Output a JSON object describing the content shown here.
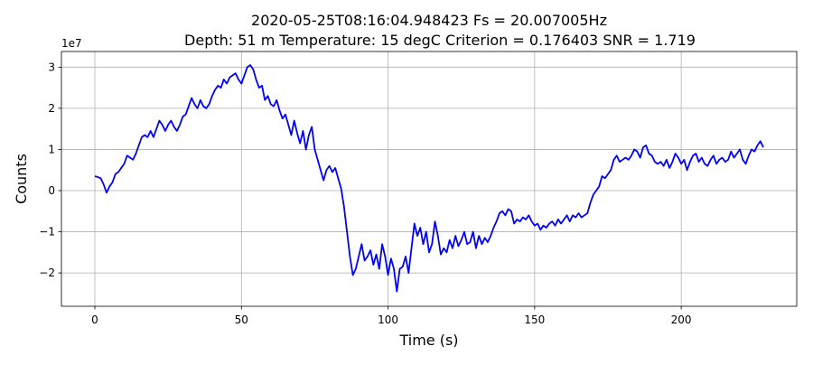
{
  "chart_data": {
    "type": "line",
    "title": "2020-05-25T08:16:04.948423     Fs = 20.007005Hz",
    "subtitle": "Depth: 51 m     Temperature: 15 degC     Criterion = 0.176403     SNR = 1.719",
    "x_label": "Time (s)",
    "y_label": "Counts",
    "y_offset_label": "1e7",
    "color": "#0000ff",
    "grid": true,
    "xlim": [
      -11.4,
      239.4
    ],
    "ylim": [
      -28100000,
      33800000
    ],
    "xticks": [
      0,
      50,
      100,
      150,
      200
    ],
    "yticks": [
      {
        "value": -20000000,
        "label": "−2"
      },
      {
        "value": -10000000,
        "label": "−1"
      },
      {
        "value": 0,
        "label": "0"
      },
      {
        "value": 10000000,
        "label": "1"
      },
      {
        "value": 20000000,
        "label": "2"
      },
      {
        "value": 30000000,
        "label": "3"
      }
    ],
    "x": [
      0,
      1,
      2,
      3,
      4,
      5,
      6,
      7,
      8,
      9,
      10,
      11,
      12,
      13,
      14,
      15,
      16,
      17,
      18,
      19,
      20,
      21,
      22,
      23,
      24,
      25,
      26,
      27,
      28,
      29,
      30,
      31,
      32,
      33,
      34,
      35,
      36,
      37,
      38,
      39,
      40,
      41,
      42,
      43,
      44,
      45,
      46,
      47,
      48,
      49,
      50,
      51,
      52,
      53,
      54,
      55,
      56,
      57,
      58,
      59,
      60,
      61,
      62,
      63,
      64,
      65,
      66,
      67,
      68,
      69,
      70,
      71,
      72,
      73,
      74,
      75,
      76,
      77,
      78,
      79,
      80,
      81,
      82,
      83,
      84,
      85,
      86,
      87,
      88,
      89,
      90,
      91,
      92,
      93,
      94,
      95,
      96,
      97,
      98,
      99,
      100,
      101,
      102,
      103,
      104,
      105,
      106,
      107,
      108,
      109,
      110,
      111,
      112,
      113,
      114,
      115,
      116,
      117,
      118,
      119,
      120,
      121,
      122,
      123,
      124,
      125,
      126,
      127,
      128,
      129,
      130,
      131,
      132,
      133,
      134,
      135,
      136,
      137,
      138,
      139,
      140,
      141,
      142,
      143,
      144,
      145,
      146,
      147,
      148,
      149,
      150,
      151,
      152,
      153,
      154,
      155,
      156,
      157,
      158,
      159,
      160,
      161,
      162,
      163,
      164,
      165,
      166,
      167,
      168,
      169,
      170,
      171,
      172,
      173,
      174,
      175,
      176,
      177,
      178,
      179,
      180,
      181,
      182,
      183,
      184,
      185,
      186,
      187,
      188,
      189,
      190,
      191,
      192,
      193,
      194,
      195,
      196,
      197,
      198,
      199,
      200,
      201,
      202,
      203,
      204,
      205,
      206,
      207,
      208,
      209,
      210,
      211,
      212,
      213,
      214,
      215,
      216,
      217,
      218,
      219,
      220,
      221,
      222,
      223,
      224,
      225,
      226,
      227,
      228
    ],
    "values": [
      3500000,
      3300000,
      3000000,
      1500000,
      -500000,
      1000000,
      2000000,
      4000000,
      4500000,
      5500000,
      6500000,
      8500000,
      8000000,
      7500000,
      9000000,
      11000000,
      13000000,
      13500000,
      13000000,
      14500000,
      13000000,
      15000000,
      17000000,
      16000000,
      14500000,
      16000000,
      17000000,
      15500000,
      14500000,
      16000000,
      18000000,
      18500000,
      20500000,
      22500000,
      21000000,
      20000000,
      22000000,
      20500000,
      20000000,
      21000000,
      23000000,
      24500000,
      25500000,
      25000000,
      27000000,
      26000000,
      27500000,
      28000000,
      28500000,
      27000000,
      26000000,
      28000000,
      30000000,
      30500000,
      29500000,
      27000000,
      25000000,
      25500000,
      22000000,
      23000000,
      21000000,
      20500000,
      22000000,
      19500000,
      17500000,
      18500000,
      16000000,
      13500000,
      17000000,
      14000000,
      11500000,
      14500000,
      10000000,
      13500000,
      15500000,
      10000000,
      7500000,
      5000000,
      2500000,
      5000000,
      6000000,
      4500000,
      5500000,
      3000000,
      500000,
      -4000000,
      -10000000,
      -16000000,
      -20500000,
      -19000000,
      -16000000,
      -13000000,
      -17000000,
      -16000000,
      -14500000,
      -18000000,
      -15500000,
      -19000000,
      -13000000,
      -16000000,
      -20500000,
      -16500000,
      -19000000,
      -24500000,
      -19000000,
      -18500000,
      -16000000,
      -20000000,
      -14000000,
      -8000000,
      -11000000,
      -9000000,
      -13000000,
      -10000000,
      -15000000,
      -13000000,
      -7500000,
      -11000000,
      -15500000,
      -14000000,
      -15000000,
      -12000000,
      -14000000,
      -11000000,
      -13500000,
      -12000000,
      -10000000,
      -13000000,
      -12500000,
      -10000000,
      -14000000,
      -11000000,
      -13000000,
      -11500000,
      -12500000,
      -11000000,
      -9000000,
      -7500000,
      -5500000,
      -5000000,
      -6000000,
      -4500000,
      -5000000,
      -8000000,
      -7000000,
      -7500000,
      -6500000,
      -7000000,
      -6000000,
      -7500000,
      -8500000,
      -8000000,
      -9500000,
      -8500000,
      -9000000,
      -8000000,
      -7500000,
      -8500000,
      -7000000,
      -8000000,
      -7000000,
      -6000000,
      -7500000,
      -6000000,
      -6500000,
      -5500000,
      -6500000,
      -6000000,
      -5500000,
      -3000000,
      -1000000,
      0,
      1000000,
      3500000,
      3000000,
      4000000,
      5000000,
      7500000,
      8500000,
      7000000,
      7500000,
      8000000,
      7500000,
      8500000,
      10000000,
      9500000,
      8000000,
      10500000,
      11000000,
      9000000,
      8500000,
      7000000,
      6500000,
      7000000,
      6000000,
      7500000,
      5500000,
      7000000,
      9000000,
      8000000,
      6500000,
      7500000,
      5000000,
      7000000,
      8500000,
      9000000,
      7000000,
      8000000,
      6500000,
      6000000,
      7500000,
      8500000,
      6500000,
      7500000,
      8000000,
      7000000,
      7500000,
      9500000,
      8000000,
      9000000,
      10000000,
      7500000,
      6500000,
      8500000,
      10000000,
      9500000,
      11000000,
      12000000,
      10500000
    ]
  }
}
